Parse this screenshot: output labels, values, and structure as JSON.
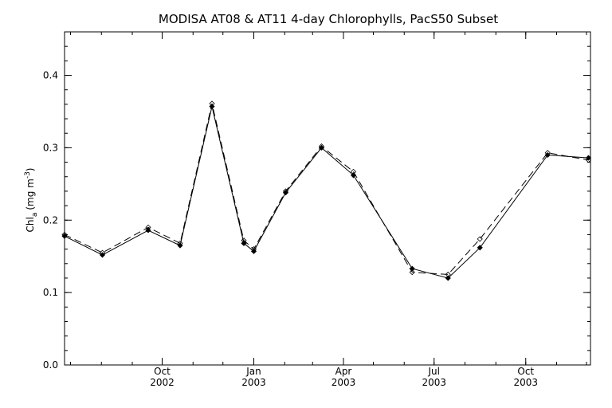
{
  "chart_data": {
    "type": "line",
    "title": "MODISA AT08 & AT11 4-day Chlorophylls, PacS50 Subset",
    "xlabel": "",
    "ylabel": "Chl_a (mg m^-3)",
    "ylabel_parts": {
      "main": "Chl",
      "sub": "a",
      "unit_open": "(mg m",
      "sup": "-3",
      "unit_close": ")"
    },
    "xlim": [
      "2002-06-25",
      "2003-12-05"
    ],
    "ylim": [
      0.0,
      0.46
    ],
    "grid": false,
    "legend": "none",
    "y_ticks": [
      {
        "value": 0.0,
        "label": "0.0"
      },
      {
        "value": 0.1,
        "label": "0.1"
      },
      {
        "value": 0.2,
        "label": "0.2"
      },
      {
        "value": 0.3,
        "label": "0.3"
      },
      {
        "value": 0.4,
        "label": "0.4"
      }
    ],
    "x_ticks": [
      {
        "date": "2002-10-01",
        "month": "Oct",
        "year": "2002"
      },
      {
        "date": "2003-01-01",
        "month": "Jan",
        "year": "2003"
      },
      {
        "date": "2003-04-01",
        "month": "Apr",
        "year": "2003"
      },
      {
        "date": "2003-07-01",
        "month": "Jul",
        "year": "2003"
      },
      {
        "date": "2003-10-01",
        "month": "Oct",
        "year": "2003"
      }
    ],
    "series": [
      {
        "style": "solid",
        "x": [
          "2002-06-25",
          "2002-08-02",
          "2002-09-17",
          "2002-10-19",
          "2002-11-20",
          "2002-12-22",
          "2003-01-01",
          "2003-02-02",
          "2003-03-10",
          "2003-04-11",
          "2003-06-09",
          "2003-07-15",
          "2003-08-16",
          "2003-10-23",
          "2003-12-03"
        ],
        "values": [
          0.178,
          0.152,
          0.186,
          0.165,
          0.357,
          0.168,
          0.157,
          0.238,
          0.3,
          0.262,
          0.133,
          0.12,
          0.162,
          0.29,
          0.286
        ]
      },
      {
        "style": "dashed",
        "x": [
          "2002-06-25",
          "2002-08-02",
          "2002-09-17",
          "2002-10-19",
          "2002-11-20",
          "2002-12-22",
          "2003-01-01",
          "2003-02-02",
          "2003-03-10",
          "2003-04-11",
          "2003-06-09",
          "2003-07-15",
          "2003-08-16",
          "2003-10-23",
          "2003-12-03"
        ],
        "values": [
          0.18,
          0.155,
          0.19,
          0.168,
          0.361,
          0.172,
          0.16,
          0.24,
          0.302,
          0.267,
          0.128,
          0.125,
          0.174,
          0.293,
          0.283
        ]
      }
    ]
  }
}
